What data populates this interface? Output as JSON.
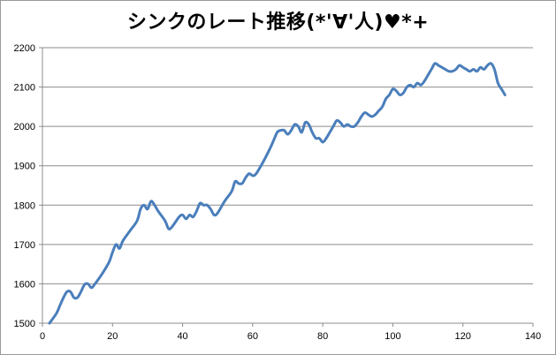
{
  "chart_data": {
    "type": "line",
    "title": "シンクのレート推移(*'∀'人)♥*+",
    "xlabel": "",
    "ylabel": "",
    "xlim": [
      0,
      140
    ],
    "ylim": [
      1500,
      2200
    ],
    "xticks": [
      0,
      20,
      40,
      60,
      80,
      100,
      120,
      140
    ],
    "yticks": [
      1500,
      1600,
      1700,
      1800,
      1900,
      2000,
      2100,
      2200
    ],
    "grid": "horizontal",
    "legend": "none",
    "series": [
      {
        "color": "#4a7ebb",
        "points": [
          [
            2,
            1500
          ],
          [
            4,
            1525
          ],
          [
            5,
            1545
          ],
          [
            6,
            1565
          ],
          [
            7,
            1580
          ],
          [
            8,
            1580
          ],
          [
            9,
            1565
          ],
          [
            10,
            1565
          ],
          [
            11,
            1580
          ],
          [
            12,
            1598
          ],
          [
            13,
            1600
          ],
          [
            14,
            1590
          ],
          [
            15,
            1600
          ],
          [
            17,
            1625
          ],
          [
            19,
            1655
          ],
          [
            20,
            1680
          ],
          [
            21,
            1700
          ],
          [
            22,
            1690
          ],
          [
            23,
            1710
          ],
          [
            25,
            1735
          ],
          [
            27,
            1760
          ],
          [
            28,
            1790
          ],
          [
            29,
            1800
          ],
          [
            30,
            1790
          ],
          [
            31,
            1810
          ],
          [
            32,
            1800
          ],
          [
            33,
            1785
          ],
          [
            35,
            1760
          ],
          [
            36,
            1740
          ],
          [
            37,
            1745
          ],
          [
            39,
            1770
          ],
          [
            40,
            1775
          ],
          [
            41,
            1765
          ],
          [
            42,
            1775
          ],
          [
            43,
            1770
          ],
          [
            44,
            1785
          ],
          [
            45,
            1805
          ],
          [
            46,
            1800
          ],
          [
            47,
            1800
          ],
          [
            48,
            1790
          ],
          [
            49,
            1775
          ],
          [
            50,
            1780
          ],
          [
            52,
            1810
          ],
          [
            54,
            1835
          ],
          [
            55,
            1860
          ],
          [
            56,
            1855
          ],
          [
            57,
            1855
          ],
          [
            58,
            1870
          ],
          [
            59,
            1880
          ],
          [
            60,
            1875
          ],
          [
            61,
            1880
          ],
          [
            63,
            1910
          ],
          [
            65,
            1945
          ],
          [
            66,
            1965
          ],
          [
            67,
            1985
          ],
          [
            68,
            1990
          ],
          [
            69,
            1990
          ],
          [
            70,
            1980
          ],
          [
            71,
            1990
          ],
          [
            72,
            2005
          ],
          [
            73,
            2000
          ],
          [
            74,
            1985
          ],
          [
            75,
            2010
          ],
          [
            76,
            2005
          ],
          [
            77,
            1985
          ],
          [
            78,
            1970
          ],
          [
            79,
            1970
          ],
          [
            80,
            1960
          ],
          [
            81,
            1970
          ],
          [
            82,
            1985
          ],
          [
            83,
            2000
          ],
          [
            84,
            2015
          ],
          [
            85,
            2010
          ],
          [
            86,
            2000
          ],
          [
            87,
            2005
          ],
          [
            88,
            2000
          ],
          [
            89,
            2000
          ],
          [
            90,
            2010
          ],
          [
            91,
            2025
          ],
          [
            92,
            2035
          ],
          [
            93,
            2030
          ],
          [
            94,
            2025
          ],
          [
            95,
            2030
          ],
          [
            96,
            2040
          ],
          [
            97,
            2050
          ],
          [
            98,
            2070
          ],
          [
            99,
            2080
          ],
          [
            100,
            2095
          ],
          [
            101,
            2090
          ],
          [
            102,
            2080
          ],
          [
            103,
            2085
          ],
          [
            104,
            2100
          ],
          [
            105,
            2105
          ],
          [
            106,
            2100
          ],
          [
            107,
            2110
          ],
          [
            108,
            2105
          ],
          [
            109,
            2115
          ],
          [
            110,
            2130
          ],
          [
            111,
            2145
          ],
          [
            112,
            2160
          ],
          [
            113,
            2155
          ],
          [
            114,
            2150
          ],
          [
            115,
            2145
          ],
          [
            116,
            2140
          ],
          [
            117,
            2140
          ],
          [
            118,
            2145
          ],
          [
            119,
            2155
          ],
          [
            120,
            2150
          ],
          [
            121,
            2145
          ],
          [
            122,
            2140
          ],
          [
            123,
            2145
          ],
          [
            124,
            2140
          ],
          [
            125,
            2150
          ],
          [
            126,
            2145
          ],
          [
            127,
            2155
          ],
          [
            128,
            2160
          ],
          [
            129,
            2145
          ],
          [
            130,
            2110
          ],
          [
            131,
            2095
          ],
          [
            132,
            2080
          ]
        ]
      }
    ]
  }
}
